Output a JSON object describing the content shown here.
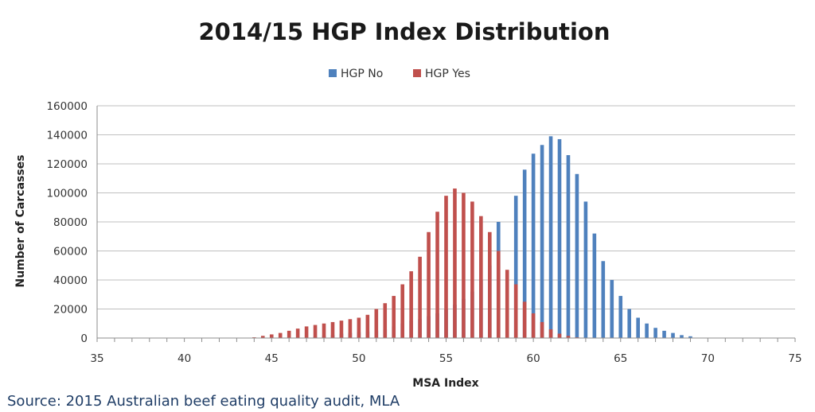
{
  "chart_data": {
    "type": "bar",
    "title": "2014/15 HGP Index Distribution",
    "xlabel": "MSA Index",
    "ylabel": "Number of Carcasses",
    "xlim": [
      35,
      75
    ],
    "ylim": [
      0,
      160000
    ],
    "x_ticks": [
      35,
      40,
      45,
      50,
      55,
      60,
      65,
      70,
      75
    ],
    "y_ticks": [
      0,
      20000,
      40000,
      60000,
      80000,
      100000,
      120000,
      140000,
      160000
    ],
    "grid": "horizontal",
    "legend_position": "top",
    "x": [
      44,
      44.5,
      45,
      45.5,
      46,
      46.5,
      47,
      47.5,
      48,
      48.5,
      49,
      49.5,
      50,
      50.5,
      51,
      51.5,
      52,
      52.5,
      53,
      53.5,
      54,
      54.5,
      55,
      55.5,
      56,
      56.5,
      57,
      57.5,
      58,
      58.5,
      59,
      59.5,
      60,
      60.5,
      61,
      61.5,
      62,
      62.5,
      63,
      63.5,
      64,
      64.5,
      65,
      65.5,
      66,
      66.5,
      67,
      67.5,
      68,
      68.5,
      69
    ],
    "series": [
      {
        "name": "HGP No",
        "color": "#4f81bd",
        "values": [
          0,
          0,
          0,
          0,
          0,
          0,
          0,
          1000,
          1500,
          2000,
          3000,
          3500,
          4000,
          4500,
          5000,
          6000,
          8000,
          10000,
          12000,
          13000,
          15000,
          17000,
          20000,
          23000,
          27000,
          32000,
          40000,
          50000,
          80000,
          0,
          98000,
          116000,
          127000,
          133000,
          139000,
          137000,
          126000,
          113000,
          94000,
          72000,
          53000,
          40000,
          29000,
          20000,
          14000,
          10000,
          7000,
          5000,
          3500,
          2000,
          1200
        ]
      },
      {
        "name": "HGP Yes",
        "color": "#c0504d",
        "values": [
          500,
          1500,
          2500,
          3500,
          5000,
          6500,
          8000,
          9000,
          10000,
          11000,
          12000,
          13000,
          14000,
          16000,
          20000,
          24000,
          29000,
          37000,
          46000,
          56000,
          73000,
          87000,
          98000,
          103000,
          100000,
          94000,
          84000,
          73000,
          60000,
          47000,
          37000,
          25000,
          17000,
          11000,
          6000,
          3000,
          1500,
          500,
          0,
          0,
          0,
          0,
          0,
          0,
          0,
          0,
          0,
          0,
          0,
          0,
          0
        ]
      }
    ],
    "annotations": []
  },
  "source_text": "Source: 2015 Australian beef eating quality audit, MLA"
}
